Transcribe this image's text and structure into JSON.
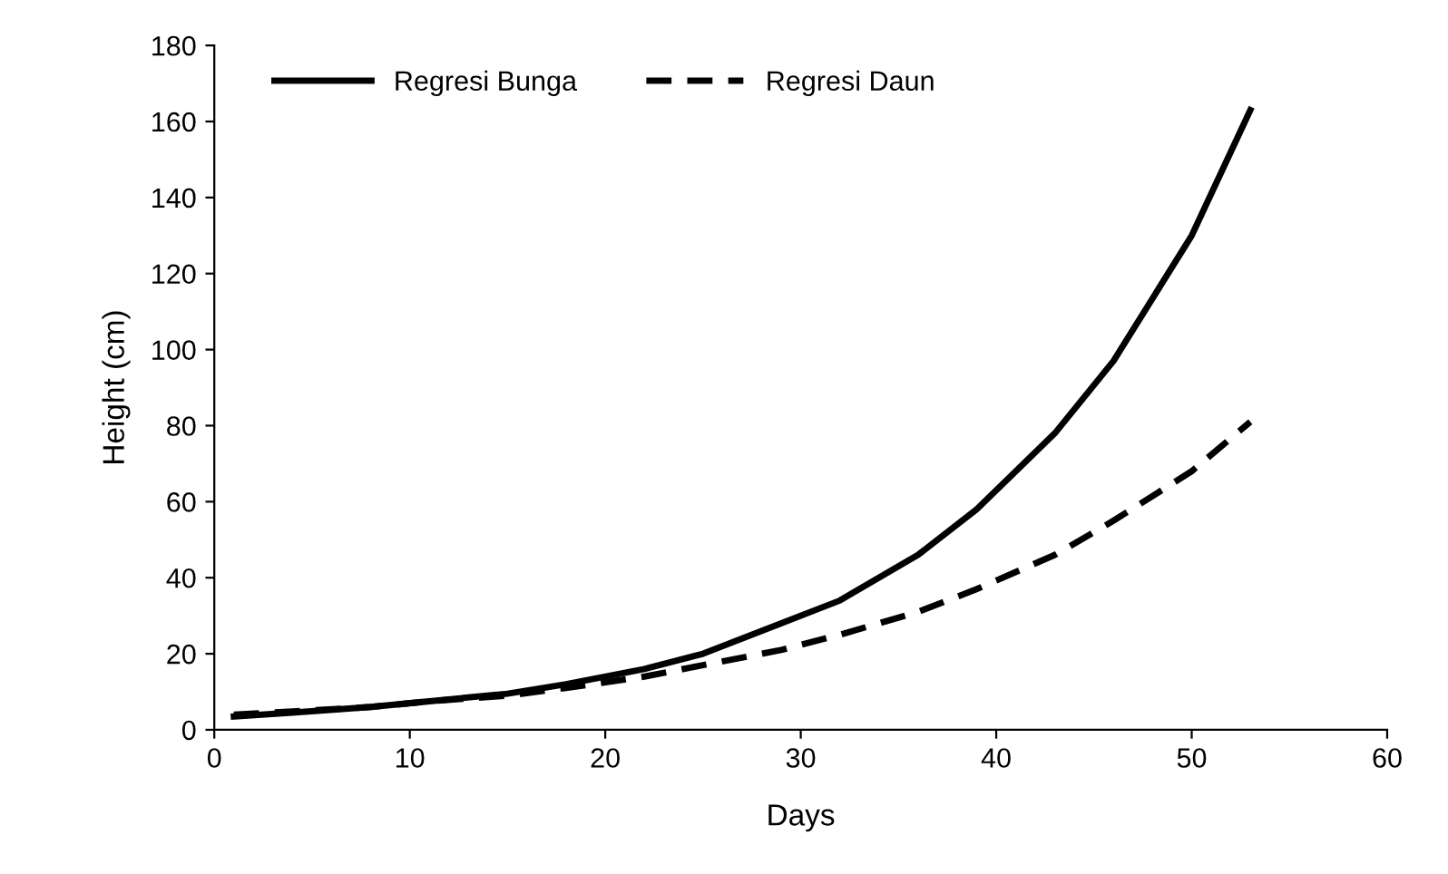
{
  "chart_data": {
    "type": "line",
    "xlabel": "Days",
    "ylabel": "Height (cm)",
    "xlim": [
      0,
      60
    ],
    "xticks": [
      0,
      10,
      20,
      30,
      40,
      50,
      60
    ],
    "ylim": [
      0,
      180
    ],
    "yticks": [
      0,
      20,
      40,
      60,
      80,
      100,
      120,
      140,
      160,
      180
    ],
    "grid": false,
    "legend": "top left",
    "marker": "none",
    "series": [
      {
        "name": "Regresi Bunga",
        "color": "#000000",
        "line_style": "solid",
        "x": [
          1,
          4,
          8,
          11,
          15,
          18,
          22,
          25,
          29,
          32,
          36,
          39,
          43,
          46,
          50,
          53
        ],
        "values": [
          3.5,
          4.5,
          6,
          7.5,
          9.5,
          12,
          16,
          20,
          28,
          34,
          46,
          58,
          78,
          97,
          130,
          163
        ]
      },
      {
        "name": "Regresi Daun",
        "color": "#000000",
        "line_style": "dashed",
        "x": [
          1,
          4,
          8,
          11,
          15,
          18,
          22,
          25,
          29,
          32,
          36,
          39,
          43,
          46,
          50,
          53
        ],
        "values": [
          4,
          4.8,
          6,
          7.5,
          9,
          11,
          14,
          17,
          21,
          25,
          31,
          37,
          46,
          55,
          68,
          81
        ]
      }
    ]
  }
}
